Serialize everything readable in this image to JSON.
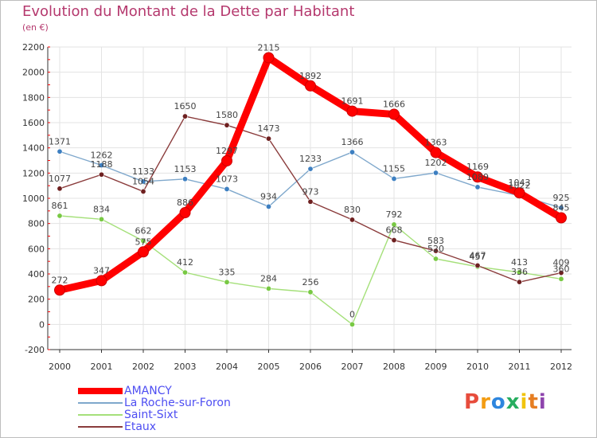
{
  "header": {
    "title": "Evolution du Montant de la Dette par Habitant",
    "subtitle": "(en €)"
  },
  "logo": {
    "text": "Proxiti",
    "colors": [
      "#e74c3c",
      "#f39c12",
      "#2e86de",
      "#27ae60",
      "#f1c40f",
      "#e67e22",
      "#8e44ad"
    ]
  },
  "colors": {
    "axis": "#333333",
    "grid": "#e3e3e3",
    "red_ticks": "#ff0000"
  },
  "chart_data": {
    "type": "line",
    "title": "Evolution du Montant de la Dette par Habitant",
    "ylabel": "(en €)",
    "xlabel": "",
    "ylim": [
      -200,
      2200
    ],
    "yticks": [
      -200,
      0,
      200,
      400,
      600,
      800,
      1000,
      1200,
      1400,
      1600,
      1800,
      2000,
      2200
    ],
    "x": [
      "2000",
      "2001",
      "2002",
      "2003",
      "2004",
      "2005",
      "2006",
      "2007",
      "2008",
      "2009",
      "2010",
      "2011",
      "2012"
    ],
    "legend_position": "bottom-left",
    "grid": true,
    "series": [
      {
        "name": "AMANCY",
        "color": "#ff0000",
        "width": 9,
        "point_color": "#ff0000",
        "values": [
          272,
          347,
          575,
          886,
          1297,
          2115,
          1892,
          1691,
          1666,
          1363,
          1169,
          1043,
          845
        ],
        "labels": [
          "272",
          "347",
          "575",
          "886",
          "1297",
          "2115",
          "1892",
          "1691",
          "1666",
          "1363",
          "1169",
          "1043",
          "845"
        ]
      },
      {
        "name": "La Roche-sur-Foron",
        "color": "#7fa8cc",
        "width": 1.4,
        "point_color": "#3d7fc1",
        "values": [
          1371,
          1262,
          1133,
          1153,
          1073,
          934,
          1233,
          1366,
          1155,
          1202,
          1089,
          1022,
          925
        ],
        "labels": [
          "1371",
          "1262",
          "1133",
          "1153",
          "1073",
          "934",
          "1233",
          "1366",
          "1155",
          "1202",
          "1089",
          "1022",
          "925"
        ]
      },
      {
        "name": "Saint-Sixt",
        "color": "#a5e07a",
        "width": 1.4,
        "point_color": "#78c943",
        "values": [
          861,
          834,
          662,
          412,
          335,
          284,
          256,
          0,
          792,
          520,
          457,
          413,
          360
        ],
        "labels": [
          "861",
          "834",
          "662",
          "412",
          "335",
          "284",
          "256",
          "0",
          "792",
          "520",
          "457",
          "413",
          "360"
        ]
      },
      {
        "name": "Etaux",
        "color": "#8a3b3b",
        "width": 1.4,
        "point_color": "#6e2020",
        "values": [
          1077,
          1188,
          1054,
          1650,
          1580,
          1473,
          973,
          830,
          668,
          583,
          467,
          336,
          409
        ],
        "labels": [
          "1077",
          "1188",
          "1054",
          "1650",
          "1580",
          "1473",
          "973",
          "830",
          "668",
          "583",
          "467",
          "336",
          "409"
        ]
      }
    ]
  }
}
